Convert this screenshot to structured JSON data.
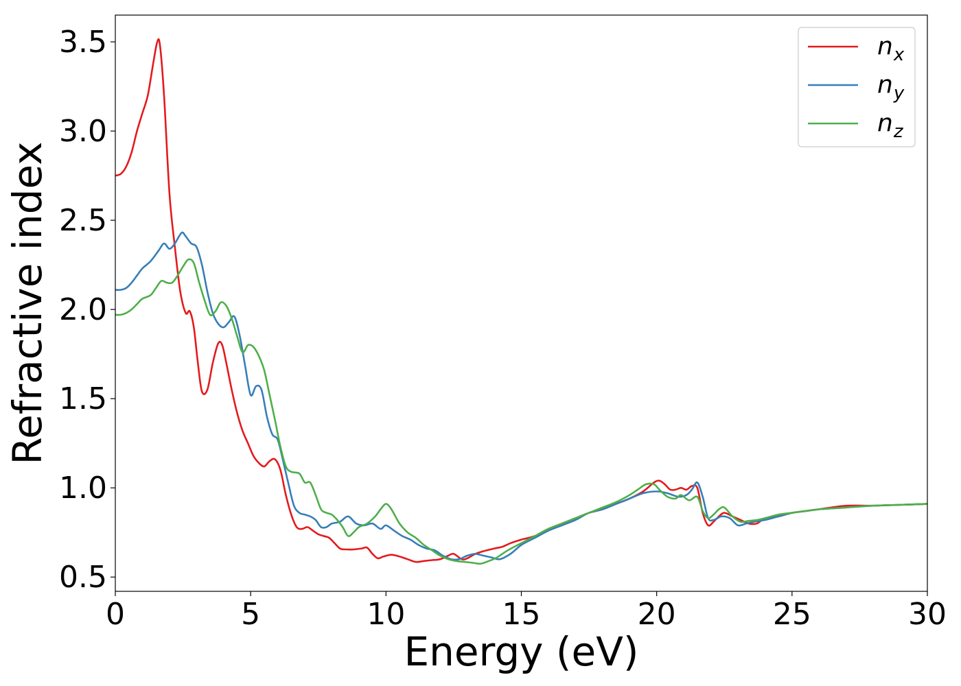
{
  "chart_data": {
    "type": "line",
    "title": "",
    "xlabel": "Energy (eV)",
    "ylabel": "Refractive index",
    "xlim": [
      0,
      30
    ],
    "ylim": [
      0.42,
      3.65
    ],
    "xticks": [
      0,
      5,
      10,
      15,
      20,
      25,
      30
    ],
    "xtick_labels": [
      "0",
      "5",
      "10",
      "15",
      "20",
      "25",
      "30"
    ],
    "yticks": [
      0.5,
      1.0,
      1.5,
      2.0,
      2.5,
      3.0,
      3.5
    ],
    "ytick_labels": [
      "0.5",
      "1.0",
      "1.5",
      "2.0",
      "2.5",
      "3.0",
      "3.5"
    ],
    "grid": false,
    "legend_position": "top-right",
    "series": [
      {
        "name": "n_x",
        "label_main": "n",
        "label_sub": "x",
        "color": "#e41a1c",
        "x": [
          0,
          0.2,
          0.4,
          0.6,
          0.8,
          1.0,
          1.2,
          1.4,
          1.55,
          1.65,
          1.8,
          2.0,
          2.2,
          2.4,
          2.6,
          2.75,
          2.9,
          3.05,
          3.2,
          3.4,
          3.6,
          3.8,
          3.95,
          4.1,
          4.3,
          4.5,
          4.7,
          4.9,
          5.1,
          5.3,
          5.5,
          5.7,
          5.9,
          6.1,
          6.3,
          6.5,
          6.7,
          6.9,
          7.1,
          7.3,
          7.5,
          7.7,
          7.9,
          8.1,
          8.3,
          8.5,
          8.8,
          9.1,
          9.3,
          9.5,
          9.7,
          9.9,
          10.2,
          10.5,
          10.8,
          11.1,
          11.4,
          11.7,
          12.0,
          12.3,
          12.5,
          12.8,
          13.0,
          13.3,
          13.6,
          14.0,
          14.3,
          14.6,
          15.0,
          15.5,
          16.0,
          16.5,
          17.0,
          17.5,
          18.0,
          18.5,
          19.0,
          19.5,
          19.9,
          20.1,
          20.3,
          20.5,
          20.7,
          20.9,
          21.1,
          21.3,
          21.5,
          21.7,
          21.9,
          22.1,
          22.3,
          22.5,
          22.8,
          23.1,
          23.4,
          23.7,
          24.0,
          24.5,
          25.0,
          25.5,
          26.0,
          27.0,
          28.0,
          29.0,
          30.0
        ],
        "values": [
          2.75,
          2.76,
          2.8,
          2.88,
          3.0,
          3.1,
          3.2,
          3.38,
          3.5,
          3.48,
          3.2,
          2.65,
          2.35,
          2.1,
          1.98,
          1.99,
          1.9,
          1.7,
          1.54,
          1.55,
          1.7,
          1.81,
          1.8,
          1.7,
          1.55,
          1.42,
          1.32,
          1.25,
          1.18,
          1.14,
          1.12,
          1.15,
          1.16,
          1.1,
          0.96,
          0.85,
          0.78,
          0.77,
          0.78,
          0.76,
          0.74,
          0.73,
          0.72,
          0.69,
          0.66,
          0.655,
          0.655,
          0.66,
          0.665,
          0.63,
          0.605,
          0.615,
          0.625,
          0.615,
          0.6,
          0.585,
          0.59,
          0.595,
          0.6,
          0.62,
          0.63,
          0.6,
          0.605,
          0.63,
          0.645,
          0.66,
          0.67,
          0.69,
          0.71,
          0.73,
          0.77,
          0.8,
          0.83,
          0.86,
          0.88,
          0.91,
          0.94,
          0.98,
          1.03,
          1.04,
          1.02,
          0.99,
          0.99,
          1.0,
          0.99,
          1.01,
          1.0,
          0.86,
          0.79,
          0.81,
          0.84,
          0.86,
          0.84,
          0.82,
          0.8,
          0.8,
          0.83,
          0.84,
          0.86,
          0.87,
          0.88,
          0.9,
          0.9,
          0.905,
          0.91
        ]
      },
      {
        "name": "n_y",
        "label_main": "n",
        "label_sub": "y",
        "color": "#377eb8",
        "x": [
          0,
          0.2,
          0.4,
          0.6,
          0.8,
          1.0,
          1.3,
          1.6,
          1.8,
          2.0,
          2.2,
          2.45,
          2.6,
          2.8,
          3.0,
          3.2,
          3.4,
          3.6,
          3.8,
          4.0,
          4.2,
          4.4,
          4.6,
          4.8,
          5.0,
          5.2,
          5.4,
          5.6,
          5.8,
          6.0,
          6.2,
          6.4,
          6.6,
          6.8,
          7.0,
          7.2,
          7.4,
          7.6,
          7.8,
          8.0,
          8.3,
          8.6,
          8.9,
          9.2,
          9.5,
          9.8,
          10.0,
          10.3,
          10.6,
          10.9,
          11.2,
          11.5,
          11.8,
          12.1,
          12.4,
          12.7,
          13.0,
          13.3,
          13.6,
          13.9,
          14.2,
          14.6,
          15.0,
          15.5,
          16.0,
          16.5,
          17.0,
          17.5,
          18.0,
          18.5,
          19.0,
          19.5,
          20.0,
          20.4,
          20.8,
          21.1,
          21.3,
          21.5,
          21.7,
          21.9,
          22.1,
          22.4,
          22.7,
          23.0,
          23.3,
          23.6,
          24.0,
          24.5,
          25.0,
          25.5,
          26.0,
          27.0,
          28.0,
          29.0,
          30.0
        ],
        "values": [
          2.11,
          2.11,
          2.12,
          2.15,
          2.19,
          2.23,
          2.27,
          2.33,
          2.37,
          2.34,
          2.37,
          2.43,
          2.41,
          2.37,
          2.35,
          2.25,
          2.1,
          1.98,
          1.92,
          1.9,
          1.93,
          1.96,
          1.85,
          1.68,
          1.52,
          1.57,
          1.55,
          1.4,
          1.3,
          1.27,
          1.15,
          1.02,
          0.9,
          0.86,
          0.85,
          0.84,
          0.82,
          0.78,
          0.78,
          0.8,
          0.81,
          0.84,
          0.8,
          0.79,
          0.8,
          0.77,
          0.79,
          0.76,
          0.73,
          0.71,
          0.68,
          0.66,
          0.65,
          0.62,
          0.6,
          0.6,
          0.62,
          0.63,
          0.62,
          0.61,
          0.6,
          0.63,
          0.68,
          0.72,
          0.76,
          0.79,
          0.82,
          0.86,
          0.88,
          0.91,
          0.94,
          0.97,
          0.98,
          0.97,
          0.95,
          0.96,
          0.99,
          1.03,
          0.95,
          0.83,
          0.82,
          0.84,
          0.83,
          0.79,
          0.8,
          0.81,
          0.82,
          0.84,
          0.86,
          0.87,
          0.88,
          0.89,
          0.9,
          0.905,
          0.91
        ]
      },
      {
        "name": "n_z",
        "label_main": "n",
        "label_sub": "z",
        "color": "#4daf4a",
        "x": [
          0,
          0.2,
          0.4,
          0.6,
          0.8,
          1.0,
          1.3,
          1.5,
          1.7,
          1.9,
          2.1,
          2.3,
          2.5,
          2.7,
          2.9,
          3.1,
          3.3,
          3.5,
          3.7,
          3.9,
          4.1,
          4.3,
          4.5,
          4.7,
          4.9,
          5.1,
          5.3,
          5.5,
          5.7,
          5.9,
          6.1,
          6.3,
          6.5,
          6.8,
          7.0,
          7.2,
          7.4,
          7.6,
          7.8,
          8.0,
          8.2,
          8.4,
          8.6,
          8.8,
          9.0,
          9.3,
          9.6,
          9.8,
          10.0,
          10.2,
          10.5,
          10.8,
          11.1,
          11.4,
          11.7,
          12.0,
          12.3,
          12.6,
          12.9,
          13.2,
          13.5,
          13.8,
          14.1,
          14.5,
          15.0,
          15.5,
          16.0,
          16.5,
          17.0,
          17.5,
          18.0,
          18.5,
          19.0,
          19.3,
          19.6,
          19.9,
          20.1,
          20.4,
          20.7,
          20.9,
          21.2,
          21.5,
          21.7,
          21.9,
          22.1,
          22.3,
          22.5,
          22.8,
          23.1,
          23.4,
          23.7,
          24.0,
          24.5,
          25.0,
          25.5,
          26.0,
          27.0,
          28.0,
          29.0,
          30.0
        ],
        "values": [
          1.97,
          1.97,
          1.98,
          2.0,
          2.03,
          2.06,
          2.08,
          2.12,
          2.16,
          2.15,
          2.15,
          2.19,
          2.24,
          2.28,
          2.26,
          2.15,
          2.05,
          1.97,
          1.99,
          2.04,
          2.02,
          1.95,
          1.85,
          1.76,
          1.8,
          1.79,
          1.74,
          1.66,
          1.52,
          1.38,
          1.23,
          1.12,
          1.09,
          1.08,
          1.03,
          1.03,
          0.96,
          0.88,
          0.86,
          0.85,
          0.82,
          0.78,
          0.73,
          0.75,
          0.78,
          0.8,
          0.84,
          0.88,
          0.91,
          0.88,
          0.8,
          0.75,
          0.72,
          0.68,
          0.65,
          0.62,
          0.6,
          0.59,
          0.585,
          0.58,
          0.575,
          0.59,
          0.61,
          0.65,
          0.69,
          0.73,
          0.77,
          0.8,
          0.83,
          0.86,
          0.89,
          0.92,
          0.96,
          0.99,
          1.02,
          1.02,
          0.99,
          0.95,
          0.94,
          0.96,
          0.93,
          0.95,
          0.87,
          0.83,
          0.85,
          0.88,
          0.89,
          0.84,
          0.81,
          0.815,
          0.82,
          0.83,
          0.85,
          0.86,
          0.87,
          0.88,
          0.89,
          0.9,
          0.905,
          0.91
        ]
      }
    ]
  }
}
